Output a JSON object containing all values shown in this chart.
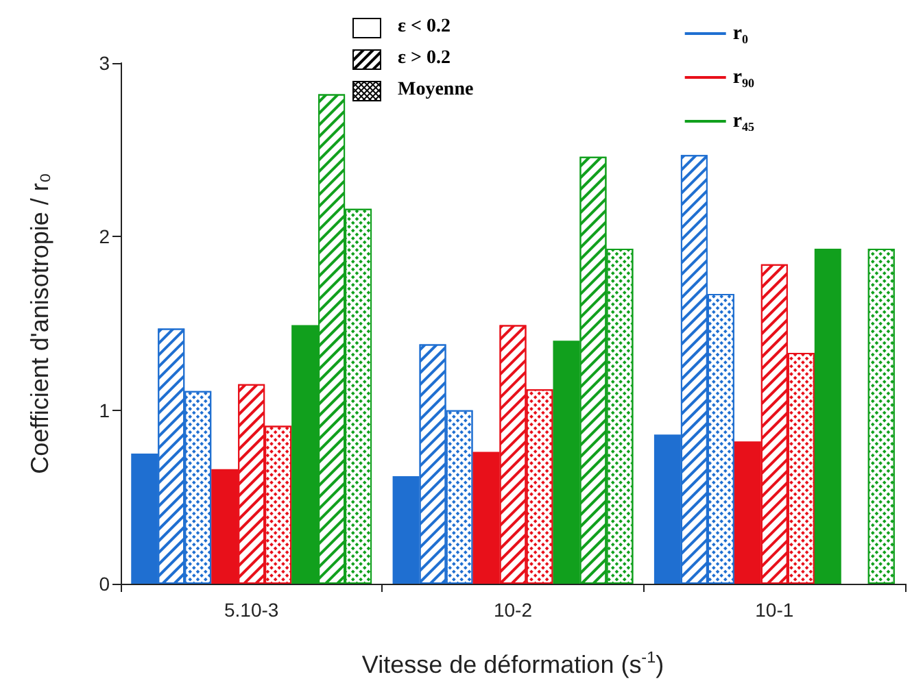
{
  "chart_data": {
    "type": "bar",
    "xlabel": "Vitesse de déformation (s$^{-1}$)",
    "ylabel": "Coefficient d'anisotropie / r₀",
    "categories": [
      "5.10-3",
      "10-2",
      "10-1"
    ],
    "series": [
      {
        "name": "r₀",
        "color": "#1f6fd1",
        "values": [
          0.75,
          0.62,
          0.86
        ]
      },
      {
        "color": "#1f6fd1",
        "values": [
          1.47,
          1.38,
          2.47
        ]
      },
      {
        "color": "#1f6fd1",
        "values": [
          1.11,
          1.0,
          1.67
        ]
      },
      {
        "name": "r₉₀",
        "color": "#e8101a",
        "values": [
          0.66,
          0.76,
          0.82
        ]
      },
      {
        "color": "#e8101a",
        "values": [
          1.15,
          1.49,
          1.84
        ]
      },
      {
        "color": "#e8101a",
        "values": [
          0.91,
          1.12,
          1.33
        ]
      },
      {
        "name": "r₄₅",
        "color": "#11a01d",
        "values": [
          1.49,
          1.4,
          1.93
        ]
      },
      {
        "color": "#11a01d",
        "values": [
          2.82,
          2.46,
          null
        ]
      },
      {
        "color": "#11a01d",
        "values": [
          2.16,
          1.93,
          1.93
        ]
      }
    ],
    "annotations": [
      "ε < 0.2",
      "ε > 0.2",
      "Moyenne"
    ],
    "ylim": [
      0,
      3
    ],
    "yticks": [
      0,
      1,
      2,
      3
    ],
    "grid": false,
    "legend": "top right"
  }
}
